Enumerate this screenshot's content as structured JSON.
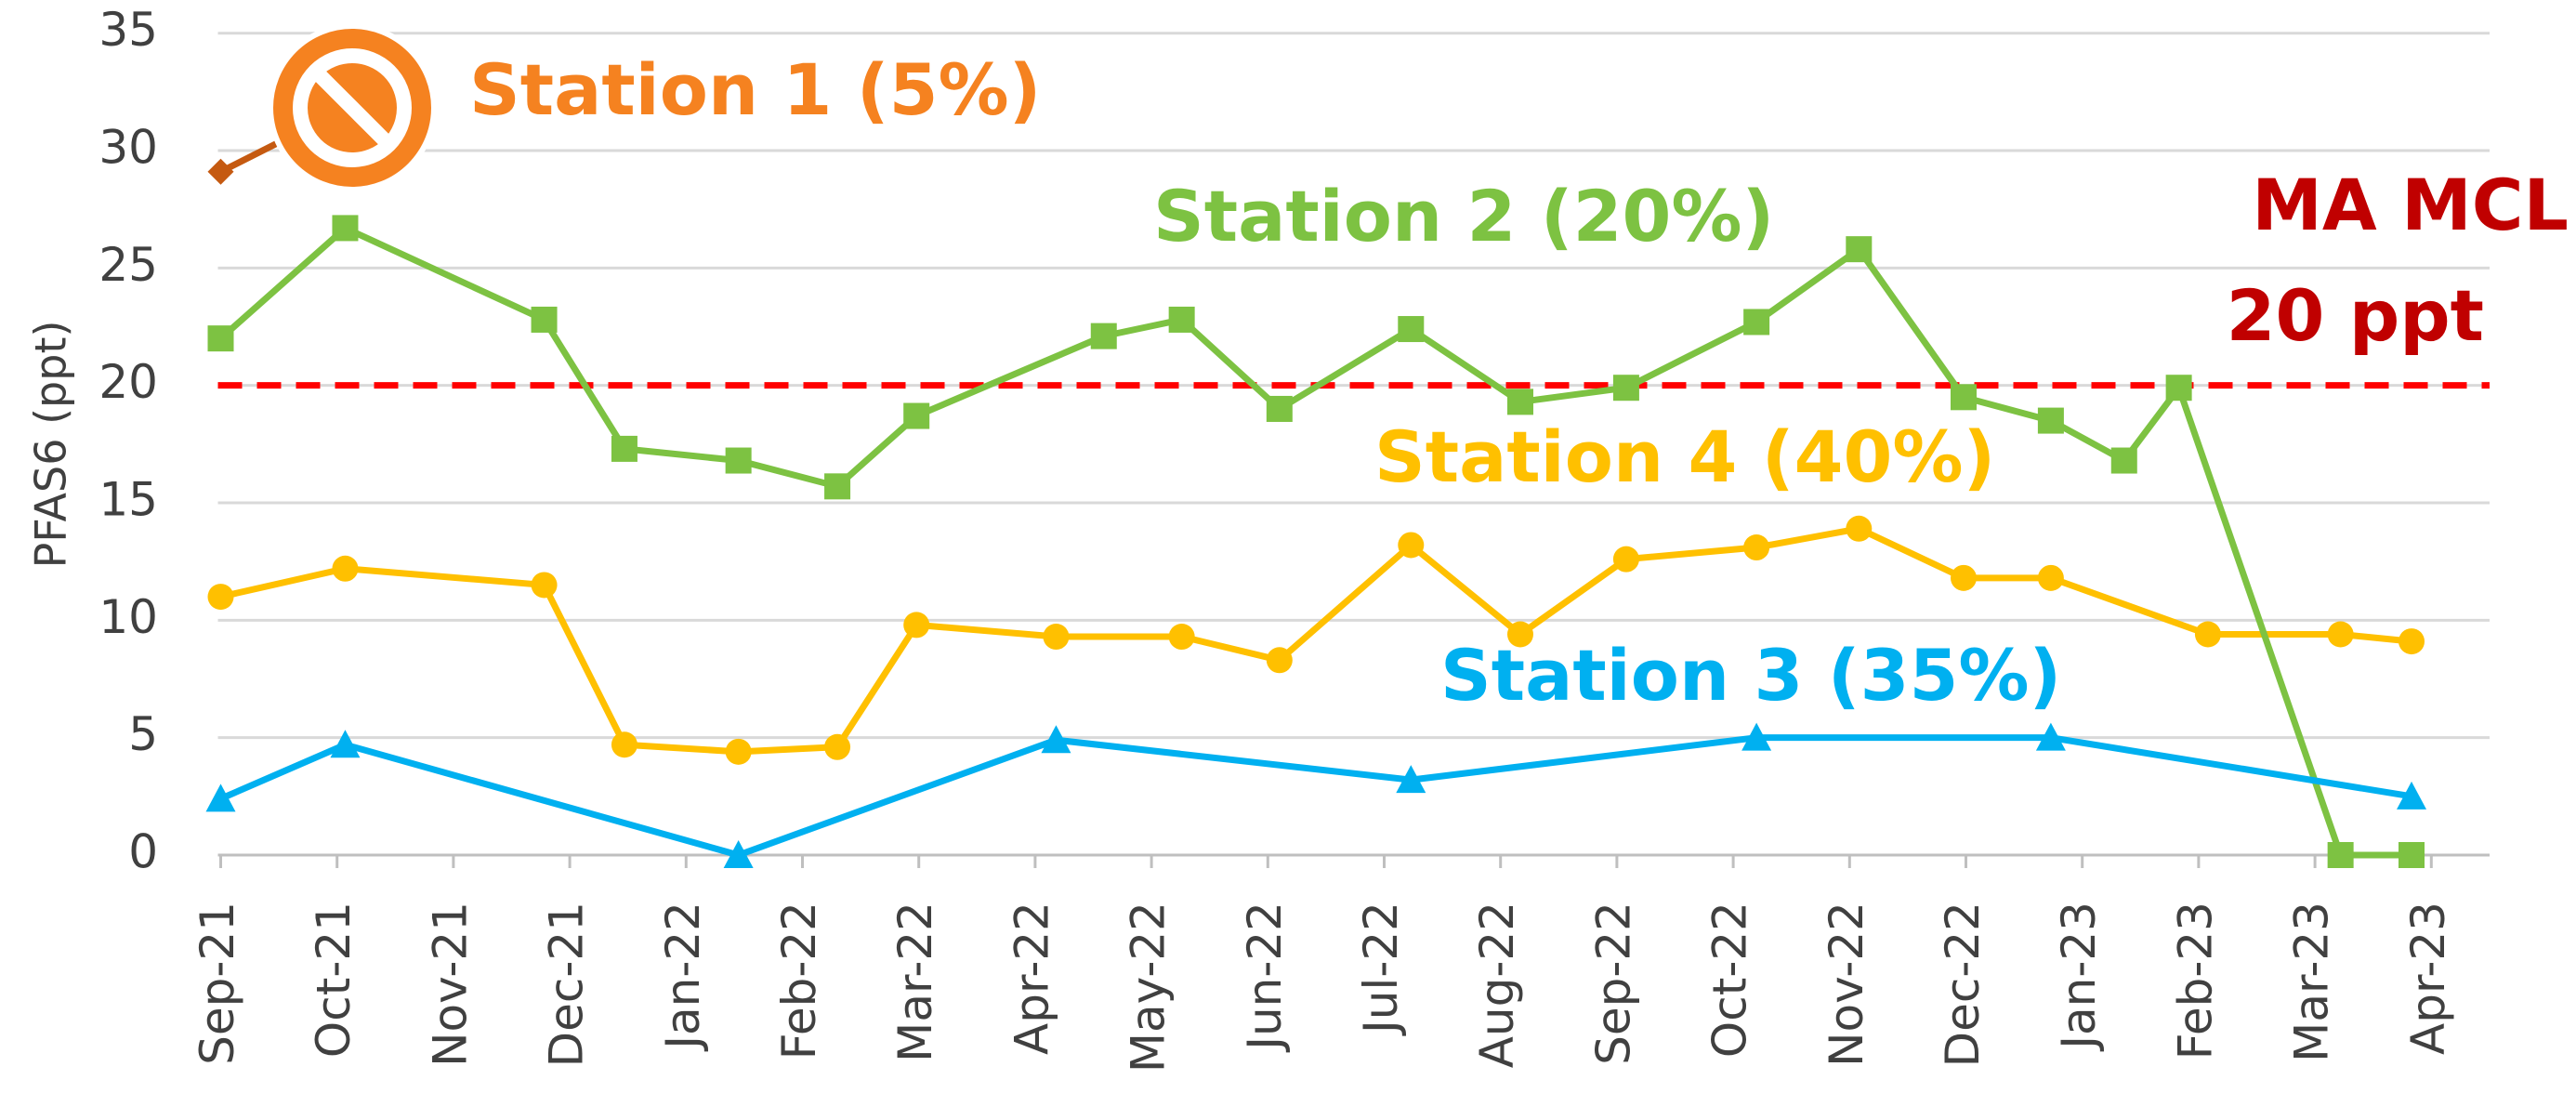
{
  "chart_data": {
    "type": "line",
    "y_label": "PFAS6 (ppt)",
    "ylim": [
      0,
      35
    ],
    "yticks": [
      0,
      5,
      10,
      15,
      20,
      25,
      30,
      35
    ],
    "xlim": [
      0,
      19
    ],
    "xticks": [
      {
        "value": 0,
        "label": "Sep-21"
      },
      {
        "value": 1,
        "label": "Oct-21"
      },
      {
        "value": 2,
        "label": "Nov-21"
      },
      {
        "value": 3,
        "label": "Dec-21"
      },
      {
        "value": 4,
        "label": "Jan-22"
      },
      {
        "value": 5,
        "label": "Feb-22"
      },
      {
        "value": 6,
        "label": "Mar-22"
      },
      {
        "value": 7,
        "label": "Apr-22"
      },
      {
        "value": 8,
        "label": "May-22"
      },
      {
        "value": 9,
        "label": "Jun-22"
      },
      {
        "value": 10,
        "label": "Jul-22"
      },
      {
        "value": 11,
        "label": "Aug-22"
      },
      {
        "value": 12,
        "label": "Sep-22"
      },
      {
        "value": 13,
        "label": "Oct-22"
      },
      {
        "value": 14,
        "label": "Nov-22"
      },
      {
        "value": 15,
        "label": "Dec-22"
      },
      {
        "value": 16,
        "label": "Jan-23"
      },
      {
        "value": 17,
        "label": "Feb-23"
      },
      {
        "value": 18,
        "label": "Mar-23"
      },
      {
        "value": 19,
        "label": "Apr-23"
      }
    ],
    "grid": true,
    "threshold": {
      "value": 20,
      "color": "#ff0000"
    },
    "annotations": [
      "Station 1 (5%)",
      "Station 2 (20%)",
      "Station 4 (40%)",
      "Station 3 (35%)",
      "MA MCL",
      "20 ppt"
    ],
    "series": [
      {
        "color": "#ffc000",
        "marker": "circle",
        "x": [
          0,
          1.07,
          2.78,
          3.47,
          4.45,
          5.3,
          5.98,
          7.18,
          8.26,
          9.1,
          10.23,
          11.17,
          12.08,
          13.2,
          14.08,
          14.98,
          15.73,
          17.08,
          18.22,
          18.83
        ],
        "values": [
          11.0,
          12.2,
          11.5,
          4.7,
          4.4,
          4.6,
          9.8,
          9.3,
          9.3,
          8.3,
          13.2,
          9.4,
          12.6,
          13.1,
          13.9,
          11.8,
          11.8,
          9.4,
          9.4,
          9.1
        ]
      },
      {
        "color": "#7dc242",
        "marker": "square",
        "x": [
          0,
          1.07,
          2.78,
          3.47,
          4.45,
          5.3,
          5.98,
          7.59,
          8.26,
          9.1,
          10.23,
          11.17,
          12.08,
          13.2,
          14.08,
          14.98,
          15.73,
          16.36,
          16.83,
          18.22,
          18.83
        ],
        "values": [
          22.0,
          26.7,
          22.8,
          17.3,
          16.8,
          15.7,
          18.7,
          22.1,
          22.8,
          19.0,
          22.4,
          19.3,
          19.9,
          22.7,
          25.8,
          19.5,
          18.5,
          16.8,
          19.9,
          0,
          0
        ]
      },
      {
        "color": "#00b0f0",
        "marker": "triangle",
        "x": [
          0,
          1.07,
          4.45,
          7.18,
          10.23,
          13.2,
          15.73,
          18.83
        ],
        "values": [
          2.4,
          4.7,
          0,
          4.9,
          3.2,
          5.0,
          5.0,
          2.5
        ]
      },
      {
        "color": "#c55a11",
        "marker": "diamond",
        "x": [
          0,
          0.96
        ],
        "values": [
          29.1,
          31.5
        ]
      }
    ]
  }
}
